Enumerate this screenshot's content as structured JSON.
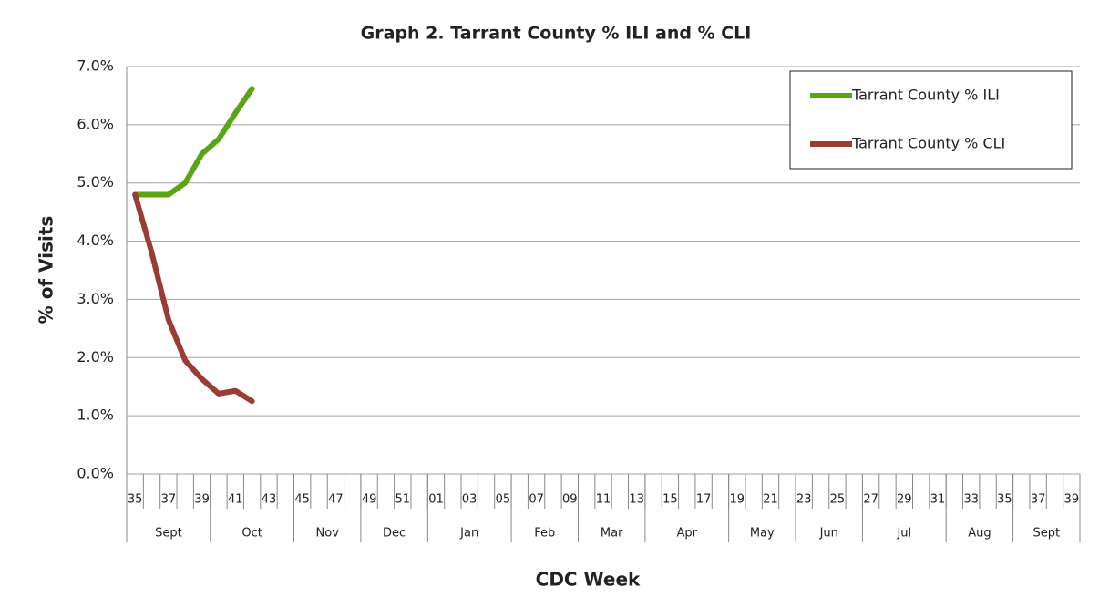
{
  "chart_data": {
    "type": "line",
    "title": "Graph 2. Tarrant County % ILI and % CLI",
    "y_label": "% of Visits",
    "x_label": "CDC Week",
    "categories": [
      "35",
      null,
      "37",
      null,
      "39",
      null,
      "41",
      null,
      "43",
      null,
      "45",
      null,
      "47",
      null,
      "49",
      null,
      "51",
      null,
      "01",
      null,
      "03",
      null,
      "05",
      null,
      "07",
      null,
      "09",
      null,
      "11",
      null,
      "13",
      null,
      "15",
      null,
      "17",
      null,
      "19",
      null,
      "21",
      null,
      "23",
      null,
      "25",
      null,
      "27",
      null,
      "29",
      null,
      "31",
      null,
      "33",
      null,
      "35",
      null,
      "37",
      null,
      "39"
    ],
    "month_groups": [
      {
        "label": "Sept",
        "weeks": 5
      },
      {
        "label": "Oct",
        "weeks": 5
      },
      {
        "label": "Nov",
        "weeks": 4
      },
      {
        "label": "Dec",
        "weeks": 4
      },
      {
        "label": "Jan",
        "weeks": 5
      },
      {
        "label": "Feb",
        "weeks": 4
      },
      {
        "label": "Mar",
        "weeks": 4
      },
      {
        "label": "Apr",
        "weeks": 5
      },
      {
        "label": "May",
        "weeks": 4
      },
      {
        "label": "Jun",
        "weeks": 4
      },
      {
        "label": "Jul",
        "weeks": 5
      },
      {
        "label": "Aug",
        "weeks": 4
      },
      {
        "label": "Sept",
        "weeks": 4
      }
    ],
    "series": [
      {
        "name": "Tarrant County % ILI",
        "color": "#5aa415",
        "values": [
          4.8,
          4.8,
          4.8,
          5.0,
          5.5,
          5.75,
          6.2,
          6.62,
          null,
          null,
          null,
          null,
          null,
          null,
          null,
          null,
          null,
          null,
          null,
          null,
          null,
          null,
          null,
          null,
          null,
          null,
          null,
          null,
          null,
          null,
          null,
          null,
          null,
          null,
          null,
          null,
          null,
          null,
          null,
          null,
          null,
          null,
          null,
          null,
          null,
          null,
          null,
          null,
          null,
          null,
          null,
          null,
          null,
          null,
          null,
          null,
          null
        ]
      },
      {
        "name": "Tarrant County % CLI",
        "color": "#9b3b32",
        "values": [
          4.8,
          3.8,
          2.65,
          1.95,
          1.63,
          1.38,
          1.43,
          1.25,
          null,
          null,
          null,
          null,
          null,
          null,
          null,
          null,
          null,
          null,
          null,
          null,
          null,
          null,
          null,
          null,
          null,
          null,
          null,
          null,
          null,
          null,
          null,
          null,
          null,
          null,
          null,
          null,
          null,
          null,
          null,
          null,
          null,
          null,
          null,
          null,
          null,
          null,
          null,
          null,
          null,
          null,
          null,
          null,
          null,
          null,
          null,
          null,
          null
        ]
      }
    ],
    "ylim": [
      0,
      7
    ],
    "yticks": [
      {
        "value": 0,
        "label": "0.0%"
      },
      {
        "value": 1,
        "label": "1.0%"
      },
      {
        "value": 2,
        "label": "2.0%"
      },
      {
        "value": 3,
        "label": "3.0%"
      },
      {
        "value": 4,
        "label": "4.0%"
      },
      {
        "value": 5,
        "label": "5.0%"
      },
      {
        "value": 6,
        "label": "6.0%"
      },
      {
        "value": 7,
        "label": "7.0%"
      }
    ],
    "grid": true,
    "legend": "upper right"
  }
}
